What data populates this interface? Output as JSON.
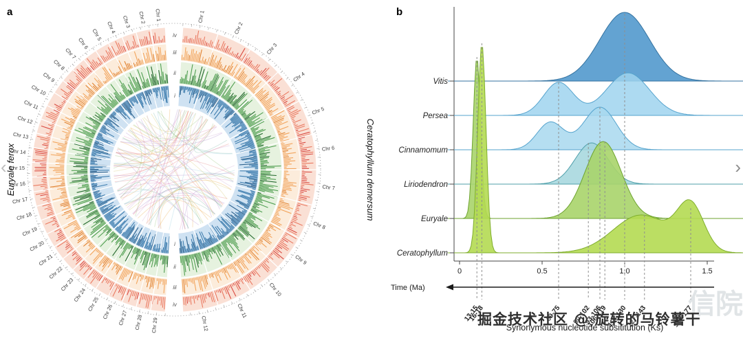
{
  "figure": {
    "panel_a_label": "a",
    "panel_b_label": "b"
  },
  "nav": {
    "prev": "‹",
    "next": "›"
  },
  "watermark": {
    "main": "掘金技术社区 @ 旋转的马铃薯干",
    "faint": "信院"
  },
  "circos": {
    "species_left": {
      "name": "Euryale ferox",
      "chromosomes": [
        "Chr 1",
        "Chr 2",
        "Chr 3",
        "Chr 4",
        "Chr 5",
        "Chr 6",
        "Chr 7",
        "Chr 8",
        "Chr 9",
        "Chr 10",
        "Chr 11",
        "Chr 12",
        "Chr 13",
        "Chr 14",
        "Chr 15",
        "Chr 16",
        "Chr 17",
        "Chr 18",
        "Chr 19",
        "Chr 20",
        "Chr 21",
        "Chr 22",
        "Chr 23",
        "Chr 24",
        "Chr 25",
        "Chr 26",
        "Chr 27",
        "Chr 28",
        "Chr 29"
      ]
    },
    "species_right": {
      "name": "Ceratophyllum demersum",
      "chromosomes": [
        "Chr 1",
        "Chr 2",
        "Chr 3",
        "Chr 4",
        "Chr 5",
        "Chr 6",
        "Chr 7",
        "Chr 8",
        "Chr 9",
        "Chr 10",
        "Chr 11",
        "Chr 12"
      ]
    },
    "track_labels": [
      "iv",
      "iii",
      "ii",
      "i"
    ],
    "tracks": [
      {
        "id": "iv",
        "bg": "#fae0d5",
        "bar": "#ea7a62",
        "bar_alt": "#d94a41"
      },
      {
        "id": "iii",
        "bg": "#fcecdb",
        "bar": "#f2a45c",
        "bar_alt": "#e0812f"
      },
      {
        "id": "ii",
        "bg": "#e6f2df",
        "bar": "#4f9e50",
        "bar_alt": "#20672a"
      },
      {
        "id": "i",
        "bg": "#cfe2f2",
        "bar": "#3e7dae",
        "bar_alt": "#2c618d"
      }
    ],
    "chord_colors": [
      "#e08ab8",
      "#8cbf6e",
      "#e8a23c",
      "#ab86cc",
      "#8ecbdd",
      "#cfc05e",
      "#df7070",
      "#6fb09e",
      "#c9a2d0"
    ]
  },
  "chart_data": {
    "type": "area",
    "subtype": "ridgeline",
    "title": "",
    "xlabel": "Synonymous nucleotide subsititution (Ks)",
    "xlim": [
      0,
      1.65
    ],
    "xticks": [
      "0",
      "0.5",
      "1.0",
      "1.5"
    ],
    "xtick_values": [
      0,
      0.5,
      1.0,
      1.5
    ],
    "series": [
      {
        "name": "Vitis",
        "fill": "#5b9ed0",
        "stroke": "#33719f",
        "opacity": 0.95,
        "components": [
          {
            "mu": 1.0,
            "sigma": 0.15,
            "amp": 100
          }
        ]
      },
      {
        "name": "Persea",
        "fill": "#9fd4ef",
        "stroke": "#55a3cd",
        "opacity": 0.85,
        "components": [
          {
            "mu": 0.6,
            "sigma": 0.09,
            "amp": 48
          },
          {
            "mu": 1.02,
            "sigma": 0.13,
            "amp": 62
          }
        ]
      },
      {
        "name": "Cinnamomum",
        "fill": "#a8d8ef",
        "stroke": "#55a3cd",
        "opacity": 0.85,
        "components": [
          {
            "mu": 0.55,
            "sigma": 0.08,
            "amp": 40
          },
          {
            "mu": 0.85,
            "sigma": 0.1,
            "amp": 62
          }
        ]
      },
      {
        "name": "Liriodendron",
        "fill": "#a3d6dd",
        "stroke": "#4f9faa",
        "opacity": 0.85,
        "components": [
          {
            "mu": 0.8,
            "sigma": 0.1,
            "amp": 60
          }
        ]
      },
      {
        "name": "Euryale",
        "fill": "#a9d46a",
        "stroke": "#6da32f",
        "opacity": 0.9,
        "components": [
          {
            "mu": 0.105,
            "sigma": 0.022,
            "amp": 235
          },
          {
            "mu": 0.87,
            "sigma": 0.11,
            "amp": 112
          }
        ]
      },
      {
        "name": "Ceratophyllum",
        "fill": "#b4da52",
        "stroke": "#7fae2c",
        "opacity": 0.9,
        "components": [
          {
            "mu": 0.135,
            "sigma": 0.025,
            "amp": 305
          },
          {
            "mu": 1.1,
            "sigma": 0.17,
            "amp": 55
          },
          {
            "mu": 1.4,
            "sigma": 0.08,
            "amp": 65
          }
        ]
      }
    ],
    "time_axis": {
      "label": "Time (Ma)",
      "markers": [
        {
          "range": "13-15",
          "ks": 0.105,
          "y_top": 83
        },
        {
          "range": "16-18",
          "ks": 0.135,
          "y_top": 63
        },
        {
          "range": "69-75",
          "ks": 0.6,
          "y_top": 120
        },
        {
          "range": "90-102",
          "ks": 0.78,
          "y_top": 208
        },
        {
          "range": "93-106",
          "ks": 0.85,
          "y_top": 156
        },
        {
          "range": "106-119",
          "ks": 0.88,
          "y_top": 206
        },
        {
          "range": "116-130",
          "ks": 1.0,
          "y_top": 20
        },
        {
          "range": "127-143",
          "ks": 1.12,
          "y_top": 313
        },
        {
          "range": "147-177",
          "ks": 1.4,
          "y_top": 303
        }
      ]
    }
  }
}
